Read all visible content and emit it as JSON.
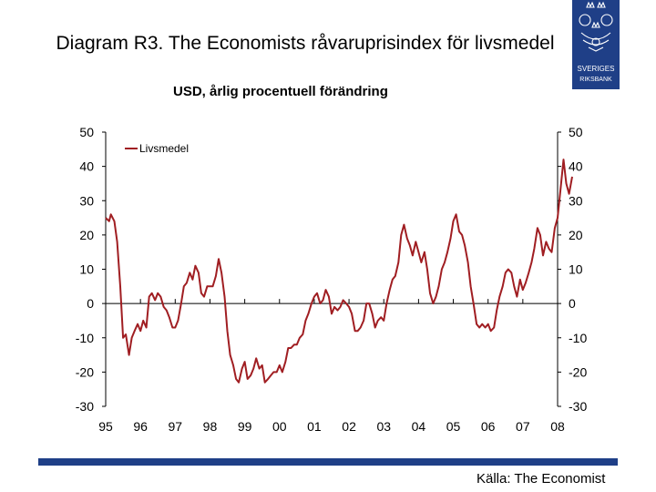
{
  "title": "Diagram R3. The Economists råvaruprisindex för livsmedel",
  "subtitle": "USD, årlig procentuell förändring",
  "source": "Källa: The Economist",
  "logo": {
    "lines": [
      "SVERIGES",
      "RIKSBANK"
    ],
    "color": "#1f3f87"
  },
  "chart_data": {
    "type": "line",
    "title": "Diagram R3. The Economists råvaruprisindex för livsmedel",
    "subtitle": "USD, årlig procentuell förändring",
    "ylim": [
      -30,
      50
    ],
    "yticks": [
      -30,
      -20,
      -10,
      0,
      10,
      20,
      30,
      40,
      50
    ],
    "dual_y_axis": true,
    "x_tick_labels": [
      "95",
      "96",
      "97",
      "98",
      "99",
      "00",
      "01",
      "02",
      "03",
      "04",
      "05",
      "06",
      "07",
      "08"
    ],
    "x_range": [
      1995.0,
      2008.0
    ],
    "legend": {
      "position": "top-left"
    },
    "grid": false,
    "series": [
      {
        "name": "Livsmedel",
        "color": "#a01e22",
        "points": [
          [
            1995.0,
            25
          ],
          [
            1995.1,
            24
          ],
          [
            1995.15,
            26
          ],
          [
            1995.25,
            24
          ],
          [
            1995.33,
            18
          ],
          [
            1995.42,
            5
          ],
          [
            1995.5,
            -10
          ],
          [
            1995.58,
            -9
          ],
          [
            1995.67,
            -15
          ],
          [
            1995.75,
            -10
          ],
          [
            1995.83,
            -8
          ],
          [
            1995.92,
            -6
          ],
          [
            1996.0,
            -8
          ],
          [
            1996.08,
            -5
          ],
          [
            1996.17,
            -7
          ],
          [
            1996.25,
            2
          ],
          [
            1996.33,
            3
          ],
          [
            1996.42,
            1
          ],
          [
            1996.5,
            3
          ],
          [
            1996.58,
            2
          ],
          [
            1996.67,
            -1
          ],
          [
            1996.75,
            -2
          ],
          [
            1996.83,
            -4
          ],
          [
            1996.92,
            -7
          ],
          [
            1997.0,
            -7
          ],
          [
            1997.08,
            -5
          ],
          [
            1997.17,
            0
          ],
          [
            1997.25,
            5
          ],
          [
            1997.33,
            6
          ],
          [
            1997.42,
            9
          ],
          [
            1997.5,
            7
          ],
          [
            1997.58,
            11
          ],
          [
            1997.67,
            9
          ],
          [
            1997.75,
            3
          ],
          [
            1997.83,
            2
          ],
          [
            1997.92,
            5
          ],
          [
            1998.0,
            5
          ],
          [
            1998.08,
            5
          ],
          [
            1998.17,
            8
          ],
          [
            1998.25,
            13
          ],
          [
            1998.33,
            9
          ],
          [
            1998.42,
            2
          ],
          [
            1998.5,
            -8
          ],
          [
            1998.58,
            -15
          ],
          [
            1998.67,
            -18
          ],
          [
            1998.75,
            -22
          ],
          [
            1998.83,
            -23
          ],
          [
            1998.92,
            -19
          ],
          [
            1999.0,
            -17
          ],
          [
            1999.08,
            -22
          ],
          [
            1999.17,
            -21
          ],
          [
            1999.25,
            -19
          ],
          [
            1999.33,
            -16
          ],
          [
            1999.42,
            -19
          ],
          [
            1999.5,
            -18
          ],
          [
            1999.58,
            -23
          ],
          [
            1999.67,
            -22
          ],
          [
            1999.75,
            -21
          ],
          [
            1999.83,
            -20
          ],
          [
            1999.92,
            -20
          ],
          [
            2000.0,
            -18
          ],
          [
            2000.08,
            -20
          ],
          [
            2000.17,
            -17
          ],
          [
            2000.25,
            -13
          ],
          [
            2000.33,
            -13
          ],
          [
            2000.42,
            -12
          ],
          [
            2000.5,
            -12
          ],
          [
            2000.58,
            -10
          ],
          [
            2000.67,
            -9
          ],
          [
            2000.75,
            -5
          ],
          [
            2000.83,
            -3
          ],
          [
            2000.92,
            0
          ],
          [
            2001.0,
            2
          ],
          [
            2001.08,
            3
          ],
          [
            2001.17,
            0
          ],
          [
            2001.25,
            1
          ],
          [
            2001.33,
            4
          ],
          [
            2001.42,
            2
          ],
          [
            2001.5,
            -3
          ],
          [
            2001.58,
            -1
          ],
          [
            2001.67,
            -2
          ],
          [
            2001.75,
            -1
          ],
          [
            2001.83,
            1
          ],
          [
            2001.92,
            0
          ],
          [
            2002.0,
            -1
          ],
          [
            2002.08,
            -3
          ],
          [
            2002.17,
            -8
          ],
          [
            2002.25,
            -8
          ],
          [
            2002.33,
            -7
          ],
          [
            2002.42,
            -5
          ],
          [
            2002.5,
            0
          ],
          [
            2002.58,
            0
          ],
          [
            2002.67,
            -3
          ],
          [
            2002.75,
            -7
          ],
          [
            2002.83,
            -5
          ],
          [
            2002.92,
            -4
          ],
          [
            2003.0,
            -5
          ],
          [
            2003.08,
            0
          ],
          [
            2003.17,
            4
          ],
          [
            2003.25,
            7
          ],
          [
            2003.33,
            8
          ],
          [
            2003.42,
            12
          ],
          [
            2003.5,
            20
          ],
          [
            2003.58,
            23
          ],
          [
            2003.67,
            19
          ],
          [
            2003.75,
            17
          ],
          [
            2003.83,
            14
          ],
          [
            2003.92,
            18
          ],
          [
            2004.0,
            15
          ],
          [
            2004.08,
            12
          ],
          [
            2004.17,
            15
          ],
          [
            2004.25,
            10
          ],
          [
            2004.33,
            3
          ],
          [
            2004.42,
            0
          ],
          [
            2004.5,
            2
          ],
          [
            2004.58,
            5
          ],
          [
            2004.67,
            10
          ],
          [
            2004.75,
            12
          ],
          [
            2004.83,
            15
          ],
          [
            2004.92,
            19
          ],
          [
            2005.0,
            24
          ],
          [
            2005.08,
            26
          ],
          [
            2005.17,
            21
          ],
          [
            2005.25,
            20
          ],
          [
            2005.33,
            17
          ],
          [
            2005.42,
            12
          ],
          [
            2005.5,
            5
          ],
          [
            2005.58,
            0
          ],
          [
            2005.67,
            -6
          ],
          [
            2005.75,
            -7
          ],
          [
            2005.83,
            -6
          ],
          [
            2005.92,
            -7
          ],
          [
            2006.0,
            -6
          ],
          [
            2006.08,
            -8
          ],
          [
            2006.17,
            -7
          ],
          [
            2006.25,
            -2
          ],
          [
            2006.33,
            2
          ],
          [
            2006.42,
            5
          ],
          [
            2006.5,
            9
          ],
          [
            2006.58,
            10
          ],
          [
            2006.67,
            9
          ],
          [
            2006.75,
            5
          ],
          [
            2006.83,
            2
          ],
          [
            2006.92,
            7
          ],
          [
            2007.0,
            4
          ],
          [
            2007.08,
            6
          ],
          [
            2007.17,
            9
          ],
          [
            2007.25,
            12
          ],
          [
            2007.33,
            16
          ],
          [
            2007.42,
            22
          ],
          [
            2007.5,
            20
          ],
          [
            2007.58,
            14
          ],
          [
            2007.67,
            18
          ],
          [
            2007.75,
            16
          ],
          [
            2007.83,
            15
          ],
          [
            2007.92,
            22
          ],
          [
            2008.0,
            25
          ],
          [
            2008.08,
            33
          ],
          [
            2008.17,
            42
          ],
          [
            2008.25,
            35
          ],
          [
            2008.33,
            32
          ],
          [
            2008.42,
            37
          ]
        ]
      }
    ]
  }
}
